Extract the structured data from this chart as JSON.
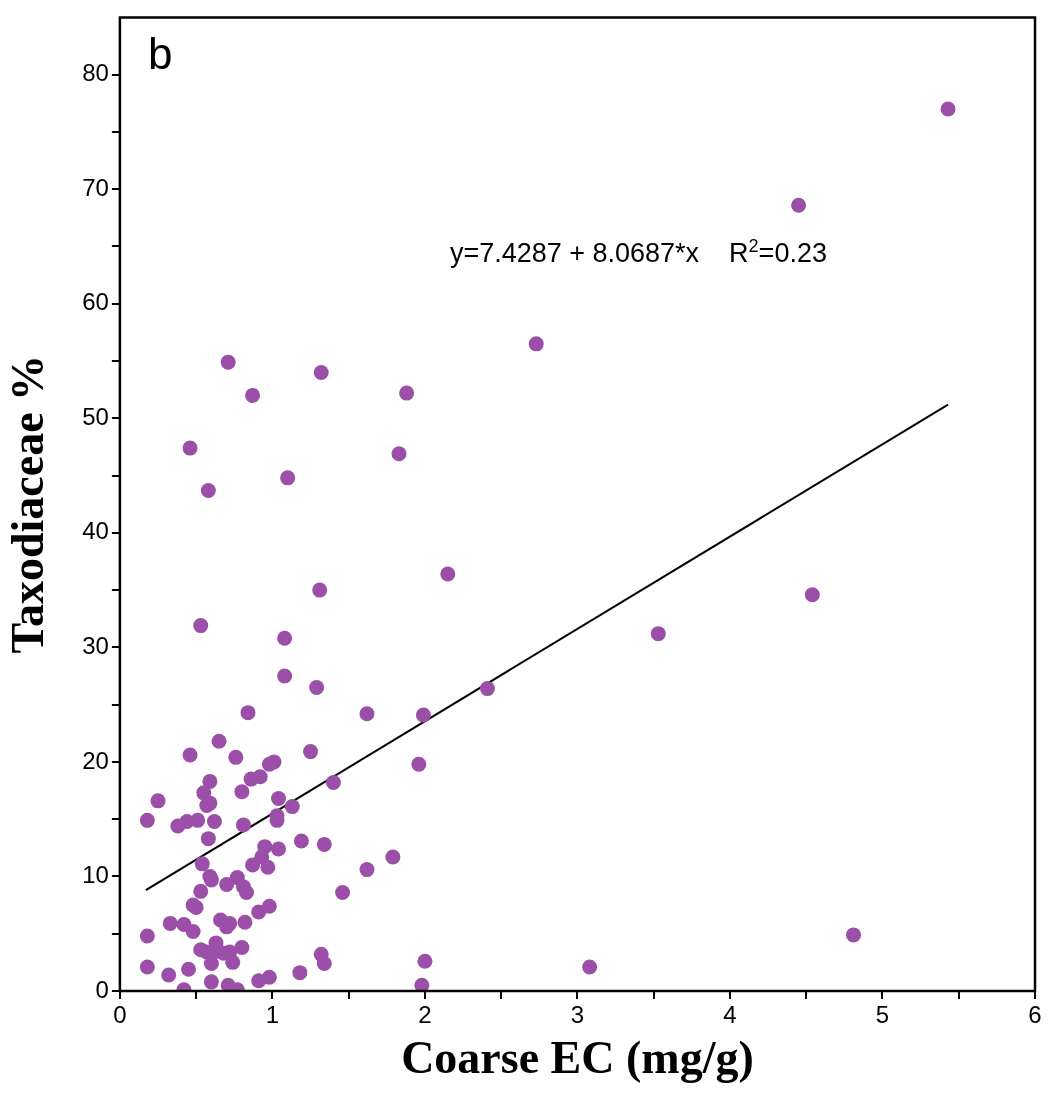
{
  "chart_data": {
    "type": "scatter",
    "title": "b",
    "xlabel": "Coarse EC (mg/g)",
    "ylabel": "Taxodiaceae %",
    "annotations": [
      "y=7.4287 + 8.0687*x    R$^{2}$=0.23"
    ],
    "grid": false,
    "legend": false,
    "xlim": [
      0,
      6
    ],
    "xticks": [
      0,
      {
        "value": 0.5,
        "label": null
      },
      1,
      {
        "value": 1.5,
        "label": null
      },
      2,
      {
        "value": 2.5,
        "label": null
      },
      3,
      {
        "value": 3.5,
        "label": null
      },
      4,
      {
        "value": 4.5,
        "label": null
      },
      5,
      {
        "value": 5.5,
        "label": null
      },
      6
    ],
    "ylim": [
      0,
      85
    ],
    "yticks": [
      0,
      {
        "value": 5,
        "label": null
      },
      10,
      {
        "value": 15,
        "label": null
      },
      20,
      {
        "value": 25,
        "label": null
      },
      30,
      {
        "value": 35,
        "label": null
      },
      40,
      {
        "value": 45,
        "label": null
      },
      50,
      {
        "value": 55,
        "label": null
      },
      60,
      {
        "value": 65,
        "label": null
      },
      70,
      {
        "value": 75,
        "label": null
      },
      80
    ],
    "series": [
      {
        "type": "scatter",
        "marker": "circle",
        "color": "#9b4fa8",
        "x": [
          1.08,
          1.29,
          0.84,
          1.62,
          1.99,
          0.65,
          0.46,
          0.76,
          1.25,
          1.96,
          0.98,
          1.01,
          0.59,
          0.86,
          0.92,
          1.4,
          0.55,
          0.8,
          0.25,
          1.04,
          0.59,
          0.57,
          1.13,
          0.18,
          0.38,
          0.44,
          0.51,
          0.62,
          0.81,
          1.03,
          1.03,
          0.58,
          1.19,
          1.34,
          0.95,
          1.04,
          0.93,
          0.87,
          0.97,
          1.79,
          0.54,
          1.62,
          0.59,
          0.6,
          0.77,
          0.7,
          0.81,
          0.83,
          1.46,
          0.53,
          0.48,
          0.5,
          0.98,
          0.91,
          0.33,
          0.42,
          0.48,
          0.66,
          0.72,
          0.7,
          0.82,
          0.18,
          0.53,
          0.57,
          0.6,
          0.63,
          0.68,
          0.72,
          0.74,
          0.6,
          0.8,
          1.32,
          1.34,
          2.0,
          0.18,
          0.32,
          0.45,
          0.42,
          0.6,
          0.71,
          0.77,
          0.91,
          0.98,
          1.18,
          1.98,
          0.71,
          1.32,
          0.87,
          1.88,
          0.46,
          1.83,
          0.58,
          1.1,
          2.15,
          1.31,
          0.53,
          1.08,
          2.73,
          4.45,
          5.43,
          3.53,
          4.54,
          2.41,
          3.08,
          4.81
        ],
        "values": [
          27.5,
          26.5,
          24.3,
          24.2,
          24.1,
          21.8,
          20.6,
          20.4,
          20.9,
          19.8,
          19.8,
          20.0,
          18.3,
          18.5,
          18.7,
          18.2,
          17.3,
          17.4,
          16.6,
          16.8,
          16.4,
          16.2,
          16.1,
          14.9,
          14.4,
          14.8,
          14.9,
          14.8,
          14.5,
          15.3,
          14.9,
          13.3,
          13.1,
          12.8,
          12.6,
          12.4,
          11.7,
          11.0,
          10.8,
          11.7,
          11.1,
          10.6,
          10.0,
          9.7,
          9.9,
          9.3,
          9.1,
          8.6,
          8.6,
          8.7,
          7.5,
          7.3,
          7.4,
          6.9,
          5.9,
          5.8,
          5.2,
          6.2,
          5.9,
          5.6,
          6.0,
          4.8,
          3.6,
          3.4,
          3.2,
          4.2,
          3.3,
          3.4,
          2.5,
          2.4,
          3.8,
          3.2,
          2.4,
          2.6,
          2.1,
          1.4,
          1.9,
          0.1,
          0.8,
          0.5,
          0.1,
          0.9,
          1.2,
          1.6,
          0.5,
          54.9,
          54.0,
          52.0,
          52.2,
          47.4,
          46.9,
          43.7,
          44.8,
          36.4,
          35.0,
          31.9,
          30.8,
          56.5,
          68.6,
          77.0,
          31.2,
          34.6,
          26.4,
          2.1,
          4.9
        ]
      },
      {
        "type": "line",
        "marker": "none",
        "color": "#000000",
        "x": [
          0.17,
          5.43
        ],
        "values": [
          8.8,
          51.2
        ]
      }
    ]
  }
}
